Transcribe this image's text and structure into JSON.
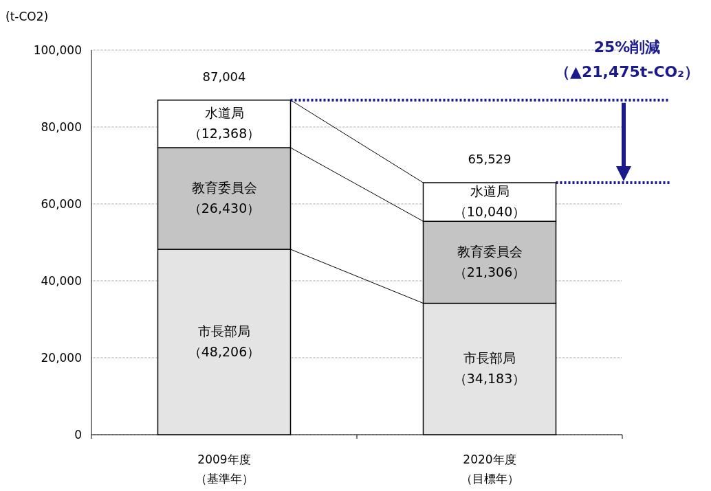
{
  "chart_data": {
    "type": "bar",
    "stacked": true,
    "ylabel": "(t-CO2)",
    "categories": [
      "2009年度（基準年）",
      "2020年度（目標年）"
    ],
    "series": [
      {
        "name": "市長部局",
        "color": "#e4e4e4",
        "values": [
          48206,
          34183
        ],
        "value_labels": [
          "（48,206）",
          "（34,183）"
        ]
      },
      {
        "name": "教育委員会",
        "color": "#c4c4c4",
        "values": [
          26430,
          21306
        ],
        "value_labels": [
          "（26,430）",
          "（21,306）"
        ]
      },
      {
        "name": "水道局",
        "color": "#ffffff",
        "values": [
          12368,
          10040
        ],
        "value_labels": [
          "（12,368）",
          "（10,040）"
        ]
      }
    ],
    "totals": [
      "87,004",
      "65,529"
    ],
    "ylim": [
      0,
      100000
    ],
    "yticks": [
      0,
      {
        "value": 20000,
        "label": "20,000"
      },
      {
        "value": 40000,
        "label": "40,000"
      },
      {
        "value": 60000,
        "label": "60,000"
      },
      {
        "value": 80000,
        "label": "80,000"
      },
      {
        "value": 100000,
        "label": "100,000"
      }
    ],
    "grid": "y",
    "ref_lines": [
      {
        "axis": "y",
        "value": 87004,
        "color": "#1a1a8c",
        "line_style": "dotted"
      },
      {
        "axis": "y",
        "value": 65529,
        "color": "#1a1a8c",
        "line_style": "dotted"
      }
    ],
    "annotations": [
      "25%削減",
      "（▲21,475t-CO₂）"
    ]
  }
}
